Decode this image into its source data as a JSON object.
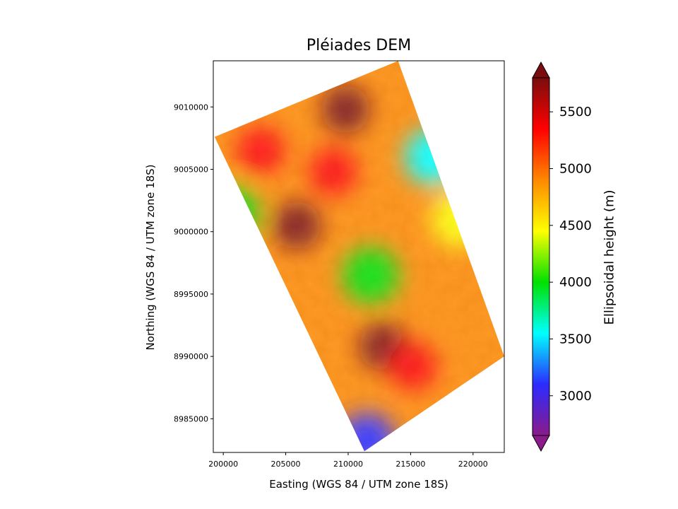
{
  "chart_data": {
    "type": "heatmap",
    "title": "Pléiades DEM",
    "xlabel": "Easting (WGS 84 / UTM zone 18S)",
    "ylabel": "Northing (WGS 84 / UTM zone 18S)",
    "xlim": [
      199200,
      222500
    ],
    "ylim": [
      8982300,
      9013700
    ],
    "xticks": [
      200000,
      205000,
      210000,
      215000,
      220000
    ],
    "xtick_labels": [
      "200000",
      "205000",
      "210000",
      "215000",
      "220000"
    ],
    "yticks": [
      8985000,
      8990000,
      8995000,
      9000000,
      9005000,
      9010000
    ],
    "ytick_labels": [
      "8985000",
      "8990000",
      "8995000",
      "9000000",
      "9005000",
      "9010000"
    ],
    "colorbar": {
      "label": "Ellipsoidal height (m)",
      "range": [
        2650,
        5800
      ],
      "ticks": [
        3000,
        3500,
        4000,
        4500,
        5000,
        5500
      ],
      "tick_labels": [
        "3000",
        "3500",
        "4000",
        "4500",
        "5000",
        "5500"
      ],
      "extend": "both",
      "colormap": [
        "#8b1a8b",
        "#2b2bff",
        "#00ffff",
        "#00e000",
        "#ffff00",
        "#ff8800",
        "#ff0000",
        "#7a0d0d"
      ]
    },
    "footprint_corners": [
      {
        "x": 199300,
        "y": 9007600
      },
      {
        "x": 214000,
        "y": 9013700
      },
      {
        "x": 222500,
        "y": 8990000
      },
      {
        "x": 211300,
        "y": 8982400
      }
    ],
    "peaks": [
      {
        "x": 212800,
        "y": 8990800,
        "height": 5700
      },
      {
        "x": 205900,
        "y": 9000500,
        "height": 5650
      },
      {
        "x": 209800,
        "y": 9009800,
        "height": 5600
      },
      {
        "x": 215200,
        "y": 8989200,
        "height": 5500
      },
      {
        "x": 203000,
        "y": 9006500,
        "height": 5300
      },
      {
        "x": 208800,
        "y": 9004800,
        "height": 5400
      }
    ],
    "valleys": [
      {
        "x": 216800,
        "y": 9006000,
        "height": 3700
      },
      {
        "x": 211800,
        "y": 8996500,
        "height": 3800
      },
      {
        "x": 200600,
        "y": 9001500,
        "height": 3900
      },
      {
        "x": 211500,
        "y": 8983200,
        "height": 3000
      },
      {
        "x": 218900,
        "y": 9001000,
        "height": 4300
      }
    ]
  }
}
